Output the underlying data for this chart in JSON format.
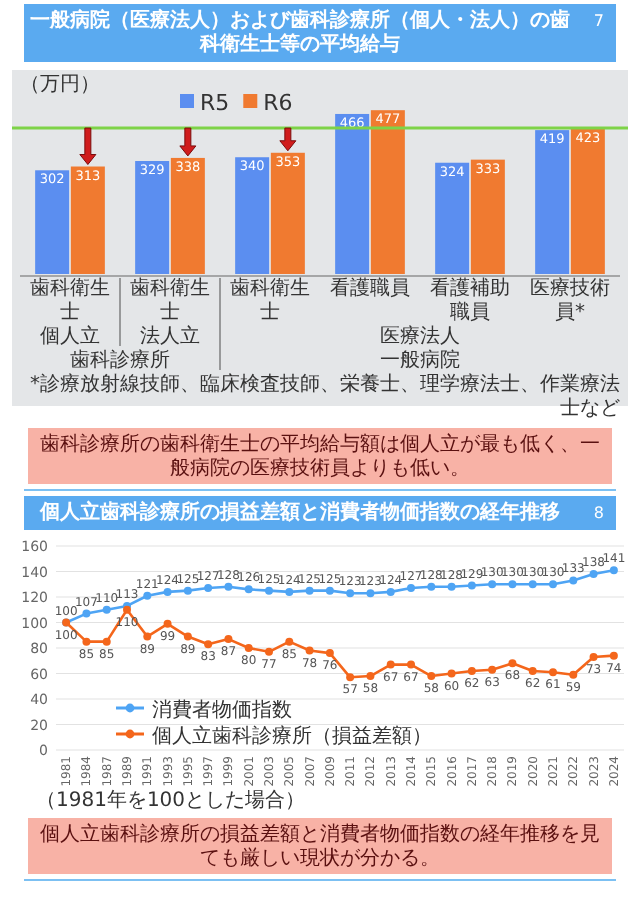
{
  "chart_data": [
    {
      "type": "bar",
      "title": "一般病院（医療法人）および歯科診療所（個人・法人）の歯科衛生士等の平均給与",
      "ylabel": "（万円）",
      "categories": [
        "歯科衛生士",
        "歯科衛生士",
        "歯科衛生士",
        "看護職員",
        "看護補助職員",
        "医療技術員*"
      ],
      "series": [
        {
          "name": "R5",
          "color": "#5b8ef0",
          "values": [
            302,
            329,
            340,
            466,
            324,
            419
          ]
        },
        {
          "name": "R6",
          "color": "#f07a30",
          "values": [
            313,
            338,
            353,
            477,
            333,
            423
          ]
        }
      ],
      "data_labels": true,
      "legend": "top left",
      "ref_lines": [
        {
          "axis": "y",
          "value": 425,
          "color": "#7ed348"
        }
      ],
      "annotations": [
        "7",
        "個人立",
        "法人立",
        "歯科診療所",
        "医療法人",
        "一般病院",
        "*診療放射線技師、臨床検査技師、栄養士、理学療法士、作業療法士など",
        "歯科診療所の歯科衛生士の平均給与額は個人立が最も低く、一般病院の医療技術員よりも低い。"
      ]
    },
    {
      "type": "line",
      "title": "個人立歯科診療所の損益差額と消費者物価指数の経年推移",
      "categories": [
        "1981",
        "1984",
        "1987",
        "1989",
        "1991",
        "1993",
        "1995",
        "1997",
        "1999",
        "2001",
        "2003",
        "2005",
        "2007",
        "2009",
        "2011",
        "2012",
        "2013",
        "2014",
        "2015",
        "2016",
        "2017",
        "2018",
        "2019",
        "2020",
        "2021",
        "2022",
        "2023",
        "2024"
      ],
      "series": [
        {
          "name": "消費者物価指数",
          "color": "#4ea4f4",
          "values": [
            100,
            107,
            110,
            113,
            121,
            124,
            125,
            127,
            128,
            126,
            125,
            124,
            125,
            125,
            123,
            123,
            124,
            127,
            128,
            128,
            129,
            130,
            130,
            130,
            130,
            133,
            138,
            141
          ]
        },
        {
          "name": "個人立歯科診療所（損益差額）",
          "color": "#f4661b",
          "values": [
            100,
            85,
            85,
            110,
            89,
            99,
            89,
            83,
            87,
            80,
            77,
            85,
            78,
            76,
            57,
            58,
            67,
            67,
            58,
            60,
            62,
            63,
            68,
            62,
            61,
            59,
            73,
            74
          ]
        }
      ],
      "ylim": [
        0,
        160
      ],
      "yticks": [
        0,
        20,
        40,
        60,
        80,
        100,
        120,
        140,
        160
      ],
      "grid": "y",
      "marker": "circle",
      "data_labels": true,
      "legend": "bottom",
      "annotations": [
        "8",
        "（1981年を100とした場合）",
        "個人立歯科診療所の損益差額と消費者物価指数の経年推移を見ても厳しい現状が分かる。"
      ]
    }
  ]
}
